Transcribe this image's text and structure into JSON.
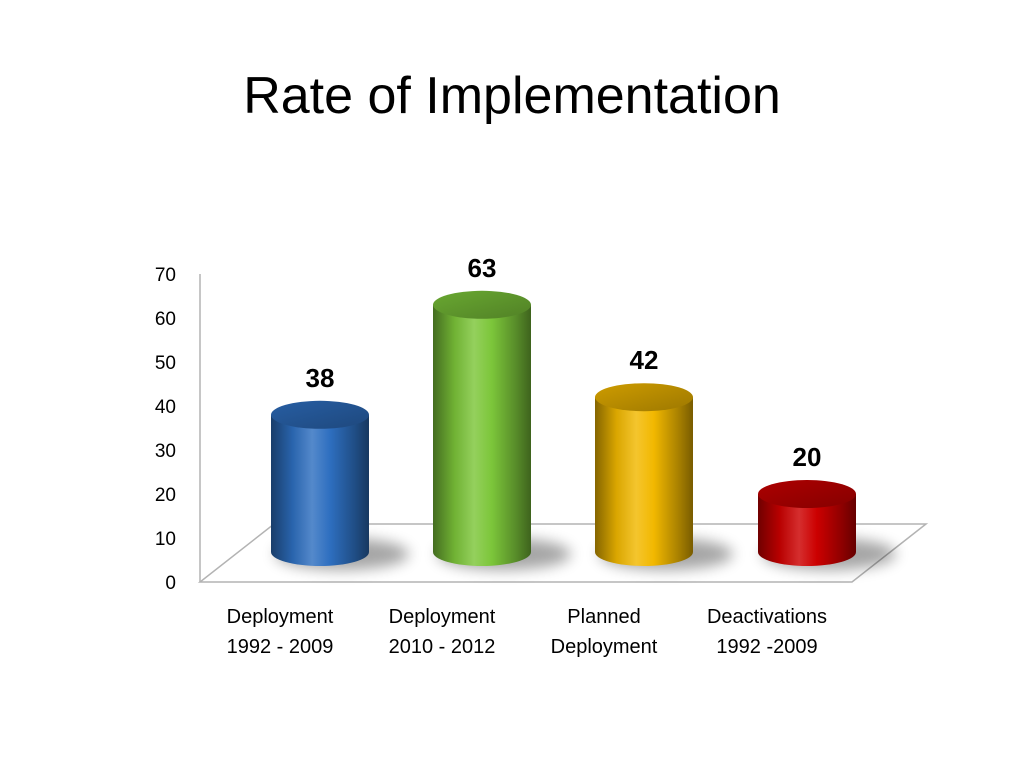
{
  "slide": {
    "title": "Rate of Implementation"
  },
  "chart_data": {
    "type": "bar",
    "style": "3d-cylinder",
    "title": "Rate of Implementation",
    "categories": [
      [
        "Deployment",
        "1992 - 2009"
      ],
      [
        "Deployment",
        "2010 - 2012"
      ],
      [
        "Planned",
        "Deployment"
      ],
      [
        "Deactivations",
        "1992 -2009"
      ]
    ],
    "values": [
      38,
      63,
      42,
      20
    ],
    "colors": [
      "#2e6fc0",
      "#7cc63a",
      "#f2b800",
      "#cc0000"
    ],
    "ylim": [
      0,
      70
    ],
    "yticks": [
      0,
      10,
      20,
      30,
      40,
      50,
      60,
      70
    ],
    "grid": false,
    "legend": "none",
    "xlabel": "",
    "ylabel": ""
  }
}
